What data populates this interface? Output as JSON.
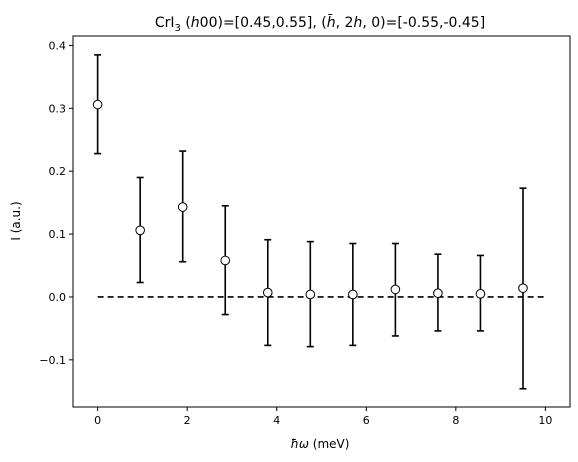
{
  "chart_data": {
    "type": "scatter",
    "title_parts": [
      "CrI",
      "3",
      " (",
      "h",
      "00)=[0.45,0.55], (",
      "h̄",
      ", 2",
      "h",
      ", 0)=[-0.55,-0.45]"
    ],
    "xlabel_parts": [
      "ħω",
      " (meV)"
    ],
    "ylabel": "I (a.u.)",
    "xlim": [
      -0.55,
      10.55
    ],
    "ylim": [
      -0.175,
      0.415
    ],
    "xticks": [
      0,
      2,
      4,
      6,
      8,
      10
    ],
    "xtick_labels": [
      "0",
      "2",
      "4",
      "6",
      "8",
      "10"
    ],
    "yticks": [
      -0.1,
      0.0,
      0.1,
      0.2,
      0.3,
      0.4
    ],
    "ytick_labels": [
      "−0.1",
      "0.0",
      "0.1",
      "0.2",
      "0.3",
      "0.4"
    ],
    "grid": false,
    "series": [
      {
        "x": [
          0,
          0.95,
          1.9,
          2.85,
          3.8,
          4.75,
          5.7,
          6.65,
          7.6,
          8.55,
          9.5
        ],
        "y": [
          0.306,
          0.106,
          0.143,
          0.058,
          0.007,
          0.004,
          0.004,
          0.012,
          0.006,
          0.005,
          0.014
        ],
        "yerr_low": [
          0.228,
          0.023,
          0.056,
          -0.028,
          -0.077,
          -0.079,
          -0.077,
          -0.062,
          -0.054,
          -0.054,
          -0.146
        ],
        "yerr_high": [
          0.385,
          0.19,
          0.232,
          0.145,
          0.091,
          0.088,
          0.085,
          0.085,
          0.068,
          0.066,
          0.173
        ],
        "marker": "open-circle",
        "color": "#000000"
      }
    ],
    "reference_line": {
      "y": 0.0,
      "x": [
        0,
        10
      ],
      "style": "dashed",
      "color": "#000000"
    }
  }
}
